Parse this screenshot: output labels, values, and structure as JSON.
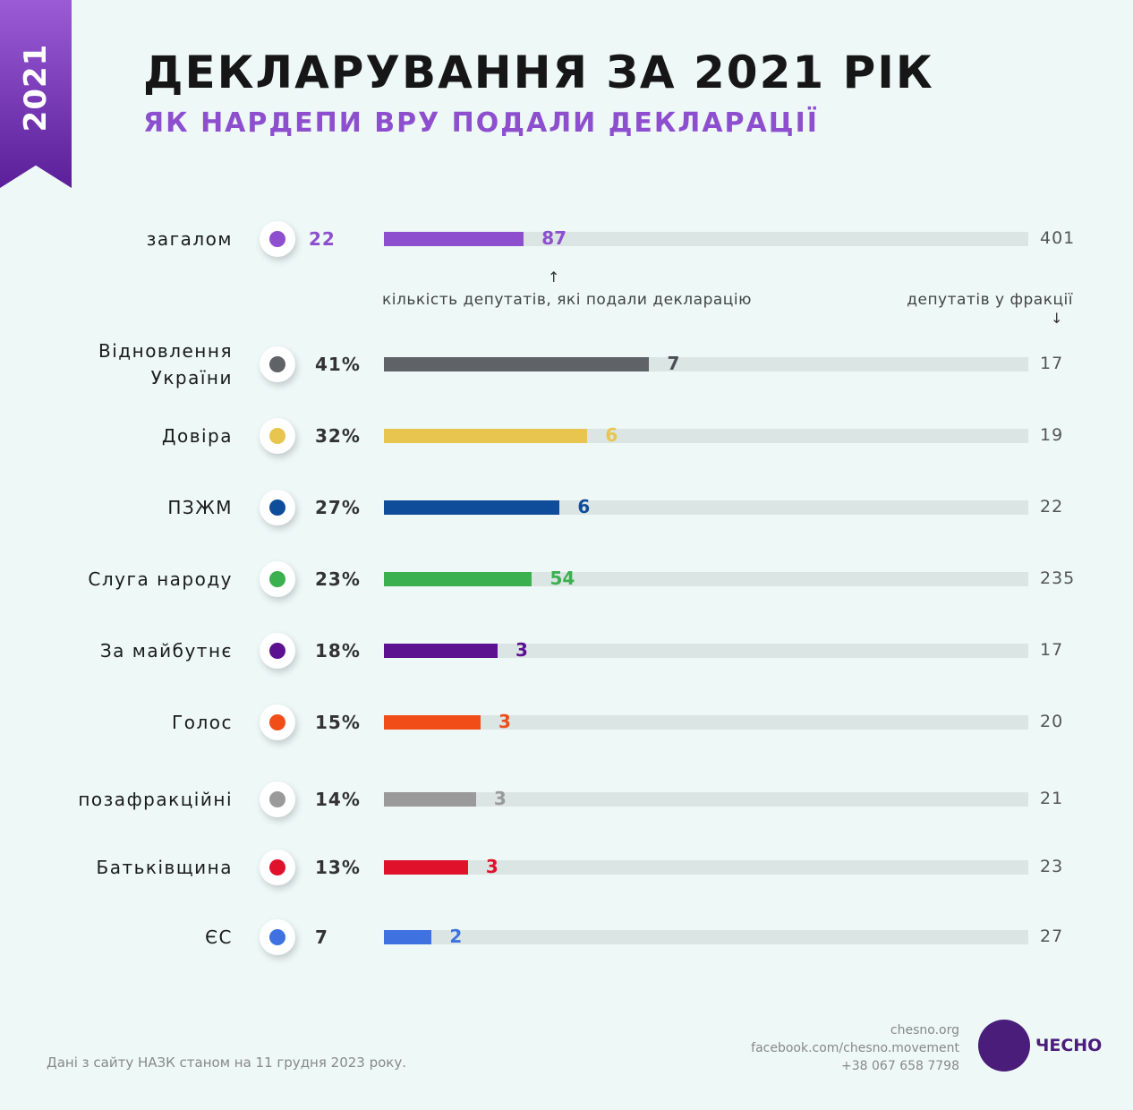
{
  "chart_data": {
    "type": "bar",
    "badge": "2021",
    "title": "ДЕКЛАРУВАННЯ ЗА 2021 РІК",
    "subtitle": "ЯК НАРДЕПИ ВРУ ПОДАЛИ ДЕКЛАРАЦІЇ",
    "categories": [
      "загалом",
      "Відновлення України",
      "Довіра",
      "ПЗЖМ",
      "Слуга народу",
      "За майбутнє",
      "Голос",
      "позафракційні",
      "Батьківщина",
      "ЄС"
    ],
    "share_labels": [
      "22",
      "41%",
      "32%",
      "27%",
      "23%",
      "18%",
      "15%",
      "14%",
      "13%",
      "7"
    ],
    "values": [
      87,
      7,
      6,
      6,
      54,
      3,
      3,
      3,
      3,
      2
    ],
    "totals": [
      401,
      17,
      19,
      22,
      235,
      17,
      20,
      21,
      23,
      27
    ],
    "colors": [
      "#8e4fcf",
      "#5f6367",
      "#e8c54f",
      "#0f4c9a",
      "#3bb04f",
      "#5b1190",
      "#f04d18",
      "#9a9a9a",
      "#e0112b",
      "#3f72e0"
    ],
    "annotation_values": "кількість депутатів, які подали декларацію",
    "annotation_totals": "депутатів у фракції",
    "source": "Дані з сайту НАЗК станом на 11 грудня 2023 року.",
    "contacts": [
      "chesno.org",
      "facebook.com/chesno.movement",
      "+38 067 658 7798"
    ],
    "logo": "ЧЕСНО"
  }
}
